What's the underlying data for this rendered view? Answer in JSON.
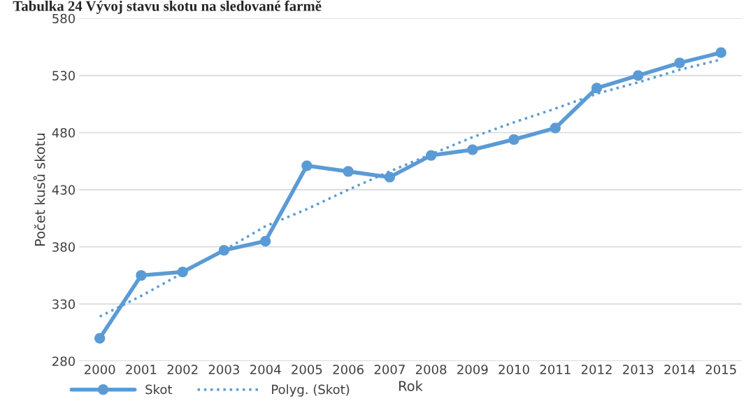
{
  "chart_data": {
    "type": "line",
    "title": "Tabulka 24 Vývoj stavu skotu na sledované farmě",
    "xlabel": "Rok",
    "ylabel": "Počet kusů skotu",
    "categories": [
      "2000",
      "2001",
      "2002",
      "2003",
      "2004",
      "2005",
      "2006",
      "2007",
      "2008",
      "2009",
      "2010",
      "2011",
      "2012",
      "2013",
      "2014",
      "2015"
    ],
    "series": [
      {
        "name": "Skot",
        "color": "#5b9bd5",
        "marker": "circle",
        "line_style": "solid",
        "values": [
          300,
          355,
          358,
          377,
          385,
          451,
          446,
          441,
          460,
          465,
          474,
          484,
          519,
          530,
          541,
          550
        ]
      },
      {
        "name": "Polyg. (Skot)",
        "color": "#5b9bd5",
        "marker": "none",
        "line_style": "dotted",
        "values": [
          319,
          337,
          357,
          377,
          398,
          413,
          430,
          446,
          461,
          476,
          489,
          501,
          514,
          524,
          535,
          544
        ]
      }
    ],
    "ylim": [
      280,
      580
    ],
    "yticks": [
      280,
      330,
      380,
      430,
      480,
      530,
      580
    ],
    "grid": "y",
    "legend": "bottom left"
  }
}
